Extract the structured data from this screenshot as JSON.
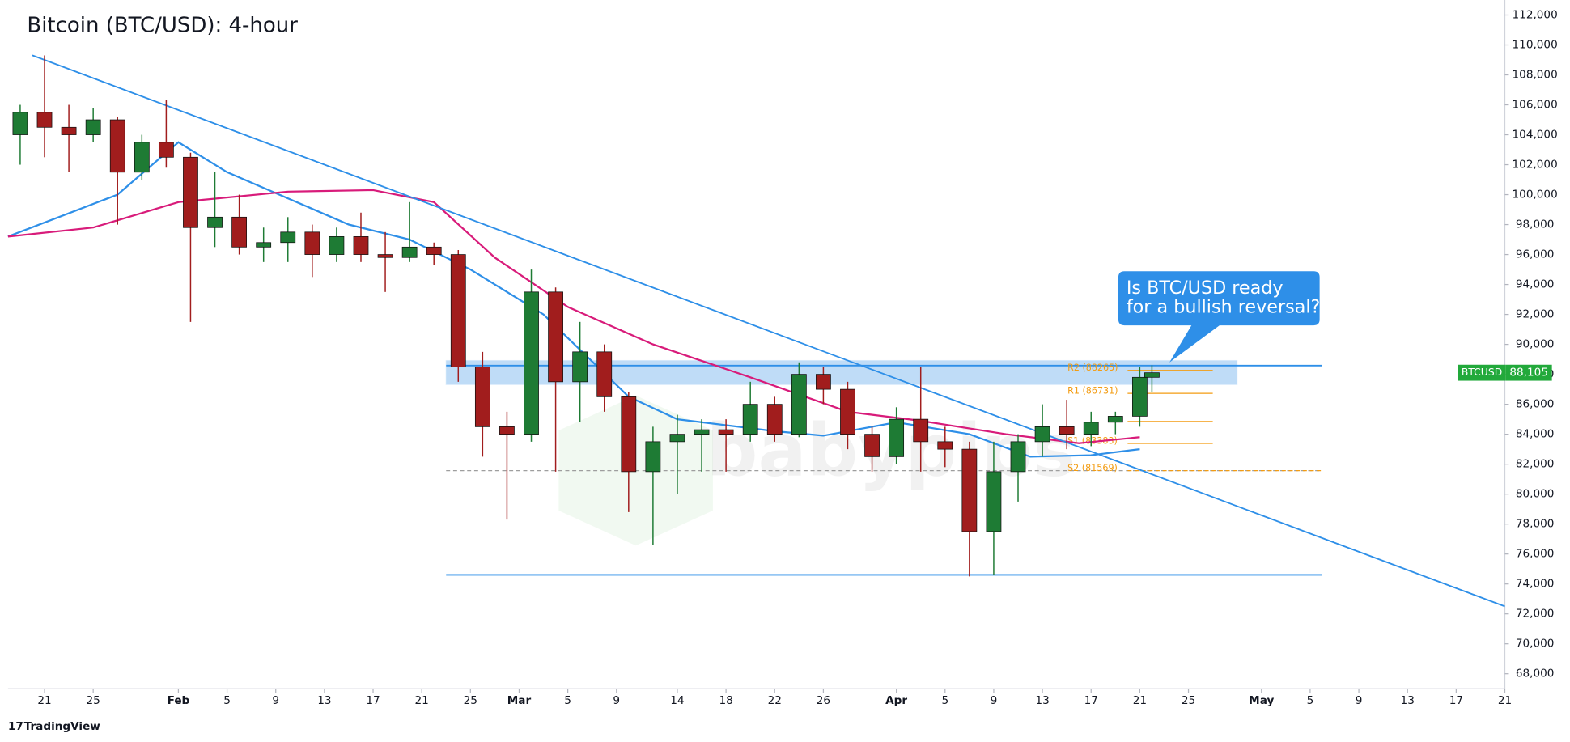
{
  "chart_data": {
    "type": "candlestick",
    "title": "Bitcoin (BTC/USD): 4-hour",
    "x": [
      "01-19",
      "01-21",
      "01-23",
      "01-25",
      "01-27",
      "01-29",
      "01-31",
      "02-02",
      "02-04",
      "02-06",
      "02-08",
      "02-10",
      "02-12",
      "02-14",
      "02-16",
      "02-18",
      "02-20",
      "02-22",
      "02-24",
      "02-26",
      "02-28",
      "03-02",
      "03-04",
      "03-06",
      "03-08",
      "03-10",
      "03-12",
      "03-14",
      "03-16",
      "03-18",
      "03-20",
      "03-22",
      "03-24",
      "03-26",
      "03-28",
      "03-30",
      "04-01",
      "04-03",
      "04-05",
      "04-07",
      "04-09",
      "04-11",
      "04-13",
      "04-15",
      "04-17",
      "04-19",
      "04-21",
      "04-22"
    ],
    "open": [
      104000,
      105500,
      104500,
      104000,
      105000,
      101500,
      103500,
      102500,
      97800,
      98500,
      96500,
      96800,
      97500,
      96000,
      97200,
      96000,
      95800,
      96500,
      96000,
      88500,
      84500,
      84000,
      93500,
      87500,
      89500,
      86500,
      81500,
      83500,
      84000,
      84300,
      84000,
      86000,
      84000,
      88000,
      87000,
      84000,
      82500,
      85000,
      83500,
      83000,
      77500,
      81500,
      83500,
      84500,
      84000,
      84800,
      85200,
      87800
    ],
    "high": [
      106000,
      109300,
      106000,
      105800,
      105200,
      104000,
      106300,
      102800,
      101500,
      100000,
      97800,
      98500,
      98000,
      97800,
      98800,
      97500,
      99500,
      96800,
      96300,
      89500,
      85500,
      95000,
      93800,
      91500,
      90000,
      86800,
      84500,
      85300,
      85000,
      85000,
      87500,
      86500,
      88800,
      88500,
      87500,
      84500,
      85800,
      88500,
      84500,
      83500,
      83500,
      84000,
      86000,
      86300,
      85500,
      85500,
      88500,
      88600
    ],
    "low": [
      102000,
      102500,
      101500,
      103500,
      98000,
      101000,
      101800,
      91500,
      96500,
      96000,
      95500,
      95500,
      94500,
      95500,
      95500,
      93500,
      95500,
      95300,
      87500,
      82500,
      78300,
      83500,
      81500,
      84800,
      85500,
      78800,
      76600,
      80000,
      81500,
      81500,
      83500,
      83500,
      83800,
      86000,
      83000,
      81500,
      82000,
      81500,
      81800,
      74500,
      74600,
      79500,
      82500,
      83000,
      83200,
      84000,
      84500,
      86800
    ],
    "close": [
      105500,
      104500,
      104000,
      105000,
      101500,
      103500,
      102500,
      97800,
      98500,
      96500,
      96800,
      97500,
      96000,
      97200,
      96000,
      95800,
      96500,
      96000,
      88500,
      84500,
      84000,
      93500,
      87500,
      89500,
      86500,
      81500,
      83500,
      84000,
      84300,
      84000,
      86000,
      84000,
      88000,
      87000,
      84000,
      82500,
      85000,
      83500,
      83000,
      77500,
      81500,
      83500,
      84500,
      84000,
      84800,
      85200,
      87800,
      88105
    ],
    "up_color": "#1e7b34",
    "down_color": "#a11d1d",
    "xlim": [
      "01-18",
      "05-21"
    ],
    "xticks": [
      {
        "value": "01-21",
        "label": "21"
      },
      {
        "value": "01-25",
        "label": "25"
      },
      {
        "value": "02-01",
        "label": "Feb"
      },
      {
        "value": "02-05",
        "label": "5"
      },
      {
        "value": "02-09",
        "label": "9"
      },
      {
        "value": "02-13",
        "label": "13"
      },
      {
        "value": "02-17",
        "label": "17"
      },
      {
        "value": "02-21",
        "label": "21"
      },
      {
        "value": "02-25",
        "label": "25"
      },
      {
        "value": "03-01",
        "label": "Mar"
      },
      {
        "value": "03-05",
        "label": "5"
      },
      {
        "value": "03-09",
        "label": "9"
      },
      {
        "value": "03-14",
        "label": "14"
      },
      {
        "value": "03-18",
        "label": "18"
      },
      {
        "value": "03-22",
        "label": "22"
      },
      {
        "value": "03-26",
        "label": "26"
      },
      {
        "value": "04-01",
        "label": "Apr"
      },
      {
        "value": "04-05",
        "label": "5"
      },
      {
        "value": "04-09",
        "label": "9"
      },
      {
        "value": "04-13",
        "label": "13"
      },
      {
        "value": "04-17",
        "label": "17"
      },
      {
        "value": "04-21",
        "label": "21"
      },
      {
        "value": "04-25",
        "label": "25"
      },
      {
        "value": "05-01",
        "label": "May"
      },
      {
        "value": "05-05",
        "label": "5"
      },
      {
        "value": "05-09",
        "label": "9"
      },
      {
        "value": "05-13",
        "label": "13"
      },
      {
        "value": "05-17",
        "label": "17"
      },
      {
        "value": "05-21",
        "label": "21"
      }
    ],
    "ylim": [
      67000,
      113000
    ],
    "yticks": [
      {
        "value": 68000,
        "label": "68,000"
      },
      {
        "value": 70000,
        "label": "70,000"
      },
      {
        "value": 72000,
        "label": "72,000"
      },
      {
        "value": 74000,
        "label": "74,000"
      },
      {
        "value": 76000,
        "label": "76,000"
      },
      {
        "value": 78000,
        "label": "78,000"
      },
      {
        "value": 80000,
        "label": "80,000"
      },
      {
        "value": 82000,
        "label": "82,000"
      },
      {
        "value": 84000,
        "label": "84,000"
      },
      {
        "value": 86000,
        "label": "86,000"
      },
      {
        "value": 88000,
        "label": "88,000"
      },
      {
        "value": 90000,
        "label": "90,000"
      },
      {
        "value": 92000,
        "label": "92,000"
      },
      {
        "value": 94000,
        "label": "94,000"
      },
      {
        "value": 96000,
        "label": "96,000"
      },
      {
        "value": 98000,
        "label": "98,000"
      },
      {
        "value": 100000,
        "label": "100,000"
      },
      {
        "value": 102000,
        "label": "102,000"
      },
      {
        "value": 104000,
        "label": "104,000"
      },
      {
        "value": 106000,
        "label": "106,000"
      },
      {
        "value": 108000,
        "label": "108,000"
      },
      {
        "value": 110000,
        "label": "110,000"
      },
      {
        "value": 112000,
        "label": "112,000"
      }
    ],
    "grid": false,
    "lines": [
      {
        "color": "#2e8fe8",
        "x": [
          "01-18",
          "01-27",
          "02-01",
          "02-05",
          "02-15",
          "02-20",
          "02-25",
          "03-03",
          "03-10",
          "03-14",
          "03-22",
          "03-26",
          "04-01",
          "04-07",
          "04-12",
          "04-17",
          "04-21"
        ],
        "y": [
          97200,
          100000,
          103500,
          101500,
          98000,
          97000,
          95000,
          92000,
          86500,
          85000,
          84200,
          83900,
          84800,
          84000,
          82500,
          82600,
          83000
        ]
      },
      {
        "color": "#d81b7a",
        "x": [
          "01-18",
          "01-25",
          "02-01",
          "02-10",
          "02-17",
          "02-22",
          "02-27",
          "03-05",
          "03-12",
          "03-20",
          "03-28",
          "04-03",
          "04-10",
          "04-16",
          "04-21"
        ],
        "y": [
          97200,
          97800,
          99500,
          100200,
          100300,
          99500,
          95800,
          92500,
          90000,
          87800,
          85500,
          84900,
          84000,
          83400,
          83800
        ]
      }
    ],
    "trendline": {
      "color": "#2e8fe8",
      "x": [
        "01-20",
        "05-21"
      ],
      "y": [
        109300,
        72500
      ]
    },
    "zone": {
      "color": "#2e8fe8",
      "x": [
        "02-23",
        "04-29"
      ],
      "y": [
        87315,
        88920
      ]
    },
    "levels": [
      {
        "color": "#2e8fe8",
        "x": [
          "02-23",
          "05-06"
        ],
        "y": 88585,
        "dash": false
      },
      {
        "color": "#2e8fe8",
        "x": [
          "02-23",
          "05-06"
        ],
        "y": 74605,
        "dash": false
      },
      {
        "color": "#9e9e9e",
        "x": [
          "02-23",
          "05-06"
        ],
        "y": 81569,
        "dash": true
      }
    ],
    "pivots": {
      "color": "#f39c12",
      "x": [
        "04-20",
        "04-27"
      ],
      "items": [
        {
          "label": "R2 (88265)",
          "value": 88265
        },
        {
          "label": "R1 (86731)",
          "value": 86731
        },
        {
          "value": 84850
        },
        {
          "label": "S1 (83383)",
          "value": 83383
        },
        {
          "label": "S2 (81569)",
          "value": 81569
        }
      ]
    },
    "last_price": {
      "name": "BTCUSD",
      "value": 88105,
      "label": "88,105",
      "color": "#22a93b"
    },
    "callout": {
      "lines": [
        "Is BTC/USD ready",
        "for a bullish reversal?"
      ],
      "color": "#2e8fe8"
    },
    "watermark": "babypips",
    "footer": "TradingView"
  }
}
